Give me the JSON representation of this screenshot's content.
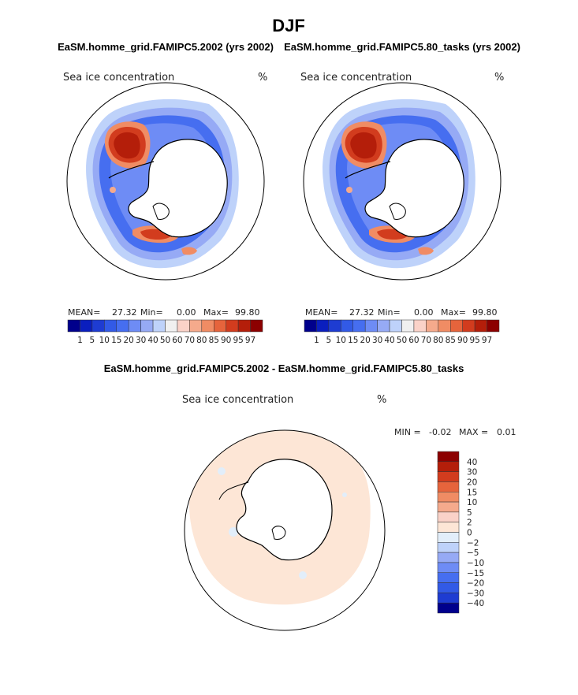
{
  "chart_data": {
    "type": "polar-map",
    "title": "DJF",
    "variable": "Sea ice concentration",
    "units": "%",
    "panels": [
      {
        "id": "model_a",
        "title": "EaSM.homme_grid.FAMIPC5.2002 (yrs 2002)",
        "stats": {
          "mean_label": "MEAN=",
          "mean": "27.32",
          "min_label": "Min=",
          "min": "0.00",
          "max_label": "Max=",
          "max": "99.80"
        }
      },
      {
        "id": "model_b",
        "title": "EaSM.homme_grid.FAMIPC5.80_tasks (yrs 2002)",
        "stats": {
          "mean_label": "MEAN=",
          "mean": "27.32",
          "min_label": "Min=",
          "min": "0.00",
          "max_label": "Max=",
          "max": "99.80"
        }
      },
      {
        "id": "difference",
        "title": "EaSM.homme_grid.FAMIPC5.2002 - EaSM.homme_grid.FAMIPC5.80_tasks",
        "stats": {
          "min_label": "MIN =",
          "min": "-0.02",
          "max_label": "MAX =",
          "max": "0.01"
        }
      }
    ],
    "colorbar_main": {
      "levels": [
        "1",
        "5",
        "10",
        "15",
        "20",
        "30",
        "40",
        "50",
        "60",
        "70",
        "80",
        "85",
        "90",
        "95",
        "97"
      ],
      "colors": [
        "#00008c",
        "#0a1ebe",
        "#1e3cd2",
        "#325ae6",
        "#466ef0",
        "#6e8cf5",
        "#96aaf5",
        "#bed2fa",
        "#f0f0f0",
        "#fad2c8",
        "#f5aa8c",
        "#f08c64",
        "#e6643c",
        "#d23c1e",
        "#b41e0a",
        "#8c0000"
      ]
    },
    "colorbar_diff": {
      "levels": [
        "40",
        "30",
        "20",
        "15",
        "10",
        "5",
        "2",
        "0",
        "−2",
        "−5",
        "−10",
        "−15",
        "−20",
        "−30",
        "−40"
      ],
      "colors": [
        "#8c0000",
        "#b41e0a",
        "#d23c1e",
        "#e6643c",
        "#f08c64",
        "#f5aa8c",
        "#fad2c8",
        "#fde6d6",
        "#e2eefa",
        "#bed2fa",
        "#96aaf5",
        "#6e8cf5",
        "#466ef0",
        "#325ae6",
        "#1e3cd2",
        "#00008c"
      ]
    },
    "difference_field": {
      "dominant_class": "2",
      "minor_class": "-2"
    }
  }
}
